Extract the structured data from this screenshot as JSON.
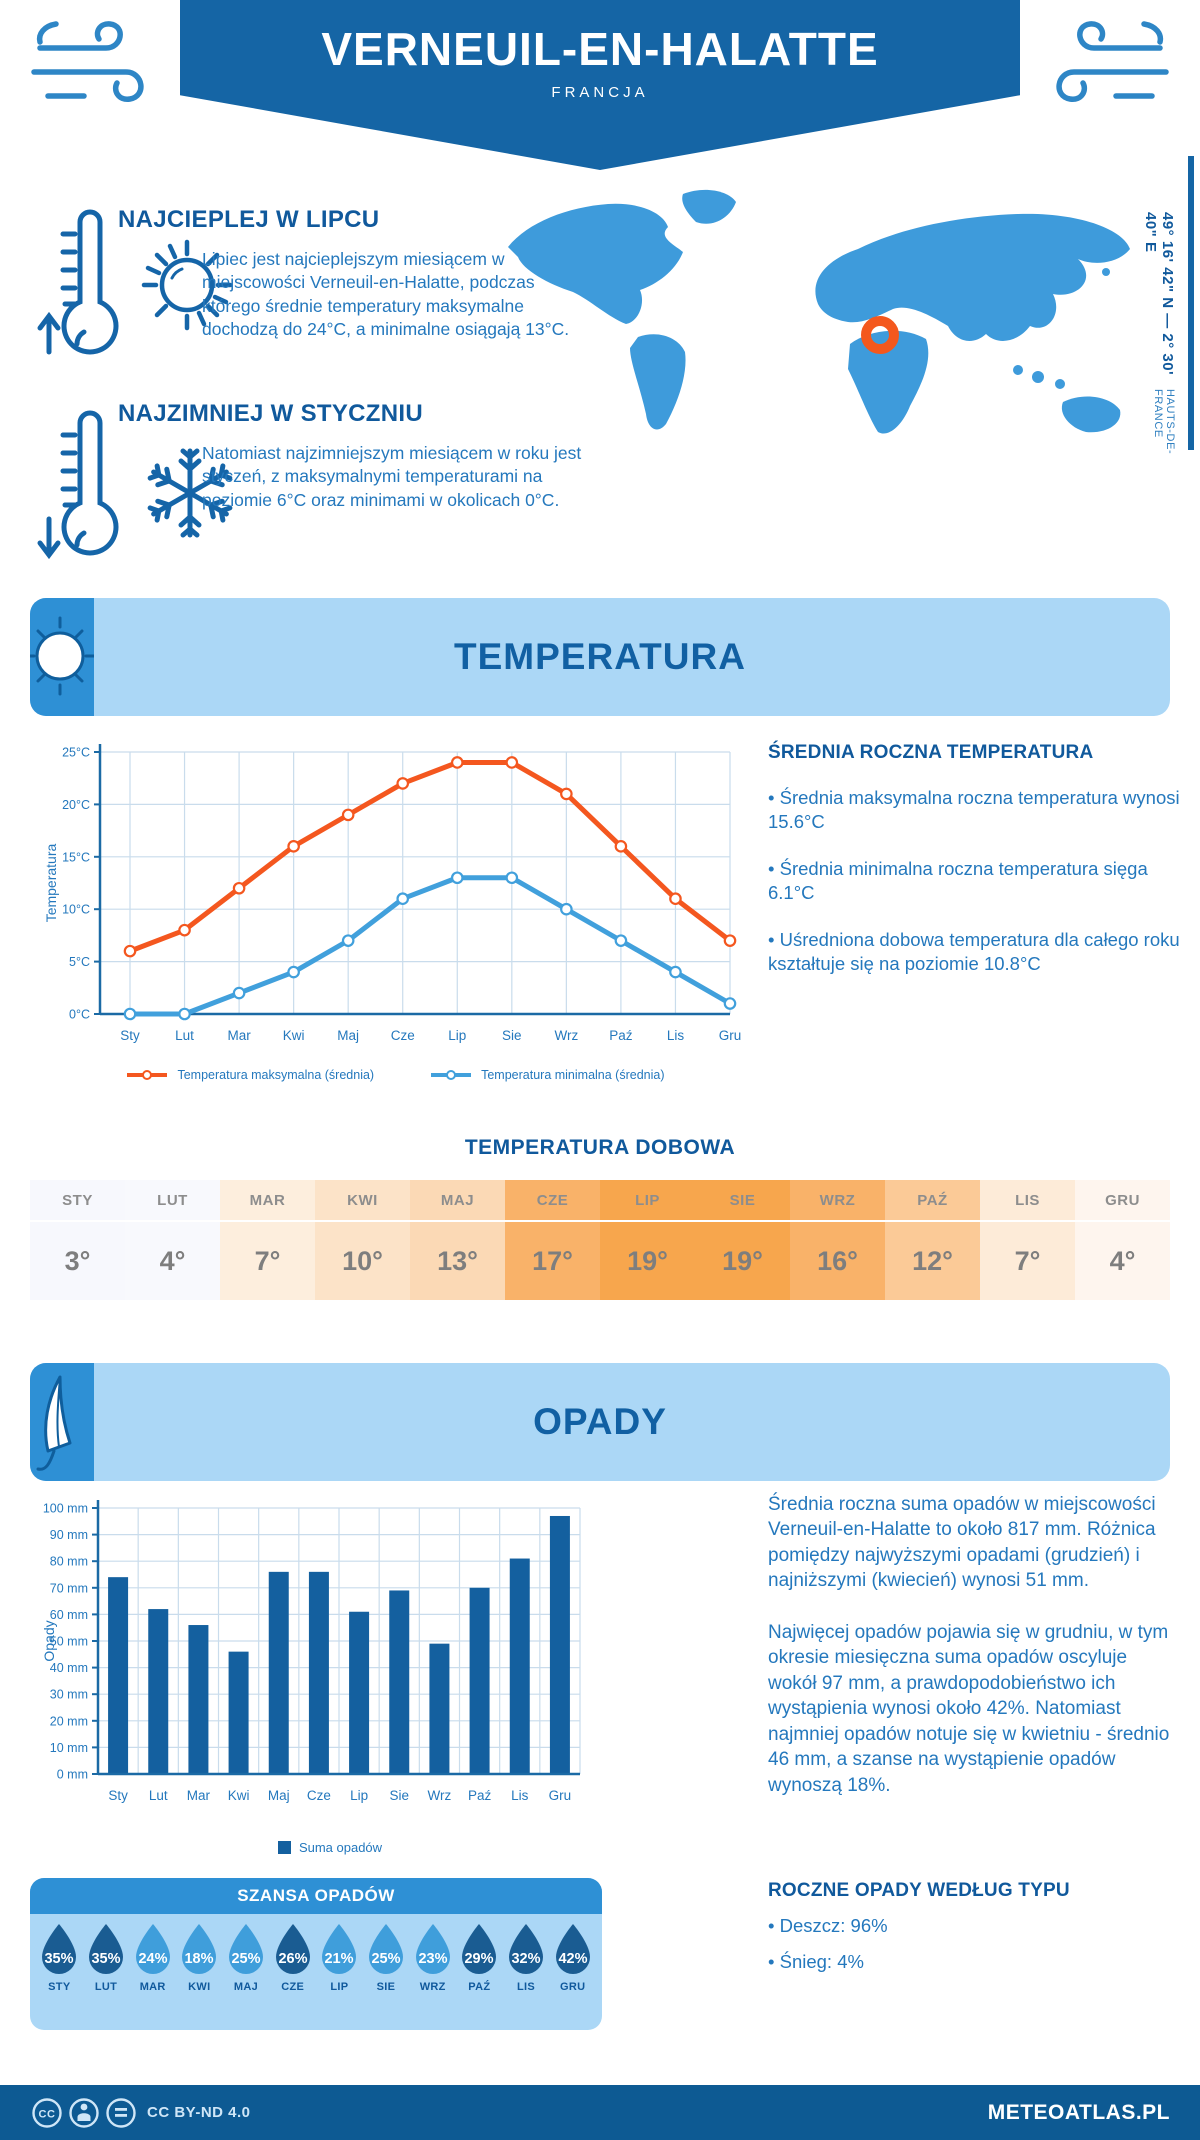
{
  "header": {
    "title": "VERNEUIL-EN-HALATTE",
    "subtitle": "FRANCJA"
  },
  "intro": {
    "warmest": {
      "title": "NAJCIEPLEJ W LIPCU",
      "text": "Lipiec jest najcieplejszym miesiącem w miejscowości Verneuil-en-Halatte, podczas którego średnie temperatury maksymalne dochodzą do 24°C, a minimalne osiągają 13°C."
    },
    "coldest": {
      "title": "NAJZIMNIEJ W STYCZNIU",
      "text": "Natomiast najzimniejszym miesiącem w roku jest styczeń, z maksymalnymi temperaturami na poziomie 6°C oraz minimami w okolicach 0°C."
    },
    "coordinates": "49° 16' 42\" N — 2° 30' 40\" E",
    "region": "HAUTS-DE-FRANCE"
  },
  "chart_data": [
    {
      "type": "line",
      "title": "TEMPERATURA",
      "categories": [
        "Sty",
        "Lut",
        "Mar",
        "Kwi",
        "Maj",
        "Cze",
        "Lip",
        "Sie",
        "Wrz",
        "Paź",
        "Lis",
        "Gru"
      ],
      "series": [
        {
          "name": "Temperatura maksymalna (średnia)",
          "color": "#f4571f",
          "values": [
            6,
            8,
            12,
            16,
            19,
            22,
            24,
            24,
            21,
            16,
            11,
            7
          ]
        },
        {
          "name": "Temperatura minimalna (średnia)",
          "color": "#41a0dc",
          "values": [
            0,
            0,
            2,
            4,
            7,
            11,
            13,
            13,
            10,
            7,
            4,
            1
          ]
        }
      ],
      "xlabel": "",
      "ylabel": "Temperatura",
      "ylim": [
        0,
        25
      ],
      "ytick_step": 5,
      "ytick_suffix": "°C",
      "grid": true,
      "legend_position": "bottom"
    },
    {
      "type": "bar",
      "title": "OPADY",
      "categories": [
        "Sty",
        "Lut",
        "Mar",
        "Kwi",
        "Maj",
        "Cze",
        "Lip",
        "Sie",
        "Wrz",
        "Paź",
        "Lis",
        "Gru"
      ],
      "values": [
        74,
        62,
        56,
        46,
        76,
        76,
        61,
        69,
        49,
        70,
        81,
        97
      ],
      "bar_color": "#14609f",
      "xlabel": "",
      "ylabel": "Opady",
      "ylim": [
        0,
        100
      ],
      "ytick_step": 10,
      "ytick_suffix": " mm",
      "grid": true,
      "legend": [
        "Suma opadów"
      ],
      "legend_position": "bottom"
    }
  ],
  "temperature_section": {
    "summary": {
      "title": "ŚREDNIA ROCZNA TEMPERATURA",
      "bullets": [
        "• Średnia maksymalna roczna temperatura wynosi 15.6°C",
        "• Średnia minimalna roczna temperatura sięga 6.1°C",
        "• Uśredniona dobowa temperatura dla całego roku kształtuje się na poziomie 10.8°C"
      ]
    },
    "daily": {
      "title": "TEMPERATURA DOBOWA",
      "months": [
        "STY",
        "LUT",
        "MAR",
        "KWI",
        "MAJ",
        "CZE",
        "LIP",
        "SIE",
        "WRZ",
        "PAŹ",
        "LIS",
        "GRU"
      ],
      "values": [
        "3°",
        "4°",
        "7°",
        "10°",
        "13°",
        "17°",
        "19°",
        "19°",
        "16°",
        "12°",
        "7°",
        "4°"
      ],
      "cell_colors": [
        "#f7f8fd",
        "#f8f9fd",
        "#fdeedd",
        "#fce3c8",
        "#fbd9b5",
        "#f9b269",
        "#f7a64d",
        "#f7a64d",
        "#f9b269",
        "#fbca97",
        "#fdebd8",
        "#fef5ee"
      ]
    }
  },
  "precipitation_section": {
    "paragraphs": [
      "Średnia roczna suma opadów w miejscowości Verneuil-en-Halatte to około 817 mm. Różnica pomiędzy najwyższymi opadami (grudzień) i najniższymi (kwiecień) wynosi 51 mm.",
      "Najwięcej opadów pojawia się w grudniu, w tym okresie miesięczna suma opadów oscyluje wokół 97 mm, a prawdopodobieństwo ich wystąpienia wynosi około 42%. Natomiast najmniej opadów notuje się w kwietniu - średnio 46 mm, a szanse na wystąpienie opadów wynoszą 18%."
    ],
    "chance": {
      "title": "SZANSA OPADÓW",
      "months": [
        "STY",
        "LUT",
        "MAR",
        "KWI",
        "MAJ",
        "CZE",
        "LIP",
        "SIE",
        "WRZ",
        "PAŹ",
        "LIS",
        "GRU"
      ],
      "values": [
        "35%",
        "35%",
        "24%",
        "18%",
        "25%",
        "26%",
        "21%",
        "25%",
        "23%",
        "29%",
        "32%",
        "42%"
      ],
      "dark": [
        true,
        true,
        false,
        false,
        false,
        true,
        false,
        false,
        false,
        true,
        true,
        true
      ]
    },
    "by_type": {
      "title": "ROCZNE OPADY WEDŁUG TYPU",
      "items": [
        "• Deszcz: 96%",
        "• Śnieg: 4%"
      ]
    }
  },
  "footer": {
    "license": "CC BY-ND 4.0",
    "site": "METEOATLAS.PL"
  },
  "colors": {
    "primary": "#1565a5",
    "heading": "#10599c",
    "text": "#2478bd",
    "accent_orange": "#f4571f",
    "line_blue": "#41a0dc",
    "bar_blue": "#14609f",
    "banner_bg": "#abd7f6",
    "banner_icon_bg": "#2e90d5",
    "grid": "#c9dcec",
    "axis": "#1b6aa5",
    "map_fill": "#3e9bdb",
    "marker_orange": "#f4581d",
    "drop_dark": "#1a5c92",
    "drop_light": "#3f9edb",
    "footer_bg": "#0d5a93"
  }
}
